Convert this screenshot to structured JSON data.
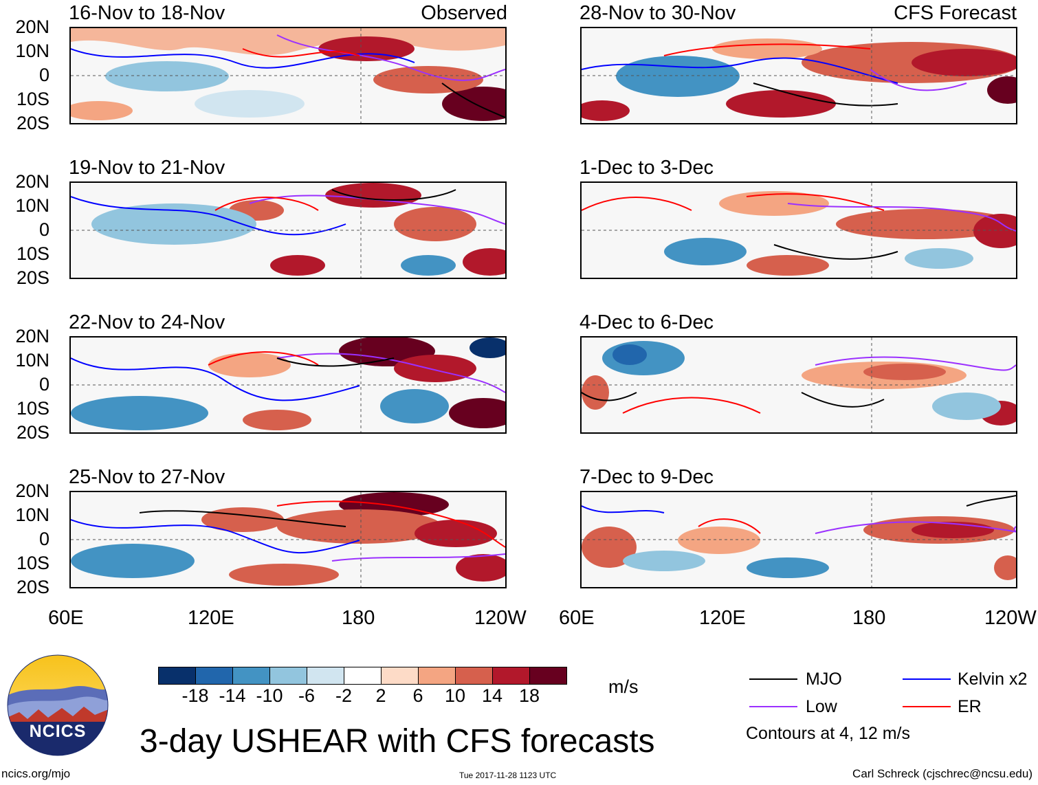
{
  "panels": [
    {
      "title": "16-Nov to 18-Nov",
      "label": "Observed"
    },
    {
      "title": "28-Nov to 30-Nov",
      "label": "CFS Forecast"
    },
    {
      "title": "19-Nov to 21-Nov",
      "label": ""
    },
    {
      "title": "1-Dec to 3-Dec",
      "label": ""
    },
    {
      "title": "22-Nov to 24-Nov",
      "label": ""
    },
    {
      "title": "4-Dec to 6-Dec",
      "label": ""
    },
    {
      "title": "25-Nov to 27-Nov",
      "label": ""
    },
    {
      "title": "7-Dec to 9-Dec",
      "label": ""
    }
  ],
  "lat_labels": [
    "20N",
    "10N",
    "0",
    "10S",
    "20S"
  ],
  "lon_labels": [
    "60E",
    "120E",
    "180",
    "120W"
  ],
  "colorbar": {
    "colors": [
      "#08306b",
      "#2166ac",
      "#4393c3",
      "#92c5de",
      "#d1e5f0",
      "#ffffff",
      "#fddbc7",
      "#f4a582",
      "#d6604d",
      "#b2182b",
      "#67001f"
    ],
    "labels": [
      "-18",
      "-14",
      "-10",
      "-6",
      "-2",
      "2",
      "6",
      "10",
      "14",
      "18"
    ],
    "units": "m/s"
  },
  "legend": {
    "items": [
      {
        "label": "MJO",
        "color": "#000000"
      },
      {
        "label": "Kelvin x2",
        "color": "#0000ff"
      },
      {
        "label": "Low",
        "color": "#9b30ff"
      },
      {
        "label": "ER",
        "color": "#ff0000"
      }
    ],
    "contours_note": "Contours at 4, 12 m/s"
  },
  "title": "3-day USHEAR with CFS forecasts",
  "logo_text": "NCICS",
  "footer": {
    "left": "ncics.org/mjo",
    "center": "Tue 2017-11-28 1123 UTC",
    "right": "Carl Schreck (cjschrec@ncsu.edu)"
  }
}
